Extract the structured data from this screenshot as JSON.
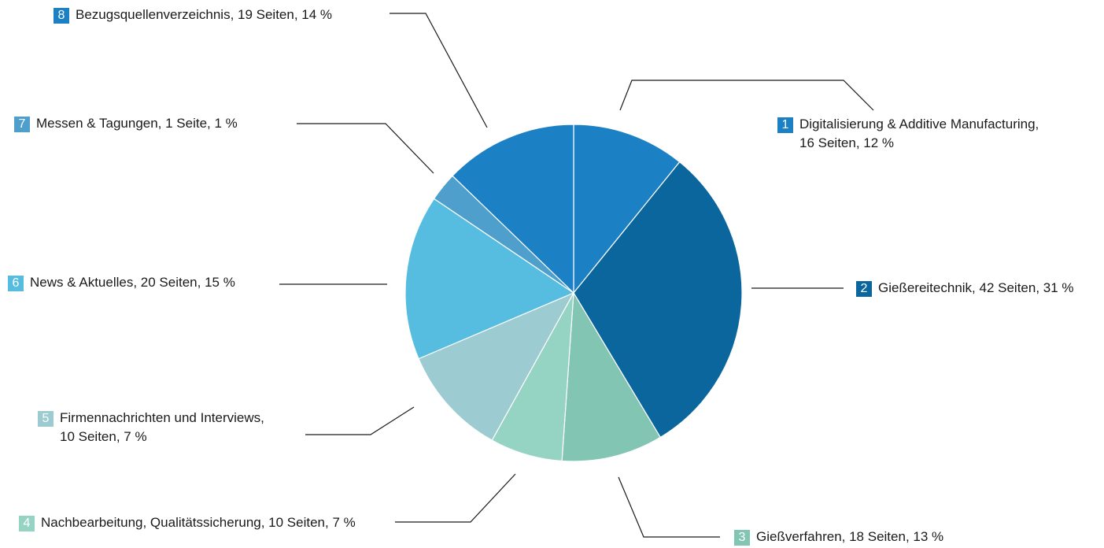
{
  "chart_data": {
    "type": "pie",
    "title": "",
    "slices": [
      {
        "number": "1",
        "line1": "Digitalisierung & Additive Manufacturing,",
        "line2": "16 Seiten, 12 %",
        "pages": 16,
        "percent": 12,
        "color": "#1b80c4"
      },
      {
        "number": "2",
        "line1": "Gießereitechnik, 42 Seiten, 31 %",
        "line2": "",
        "pages": 42,
        "percent": 31,
        "color": "#0a669c"
      },
      {
        "number": "3",
        "line1": "Gießverfahren, 18 Seiten, 13 %",
        "line2": "",
        "pages": 18,
        "percent": 13,
        "color": "#82c5b3"
      },
      {
        "number": "4",
        "line1": "Nachbearbeitung, Qualitätssicherung, 10 Seiten, 7 %",
        "line2": "",
        "pages": 10,
        "percent": 7,
        "color": "#95d3c3"
      },
      {
        "number": "5",
        "line1": "Firmennachrichten und Interviews,",
        "line2": "10 Seiten, 7 %",
        "pages": 10,
        "percent": 7,
        "color": "#9ccbd1"
      },
      {
        "number": "6",
        "line1": "News & Aktuelles, 20 Seiten, 15 %",
        "line2": "",
        "pages": 20,
        "percent": 15,
        "color": "#56bde0"
      },
      {
        "number": "7",
        "line1": "Messen & Tagungen, 1 Seite, 1 %",
        "line2": "",
        "pages": 1,
        "percent": 1,
        "color": "#4f9fcc"
      },
      {
        "number": "8",
        "line1": "Bezugsquellenverzeichnis, 19 Seiten, 14 %",
        "line2": "",
        "pages": 19,
        "percent": 14,
        "color": "#1b80c4"
      }
    ]
  }
}
